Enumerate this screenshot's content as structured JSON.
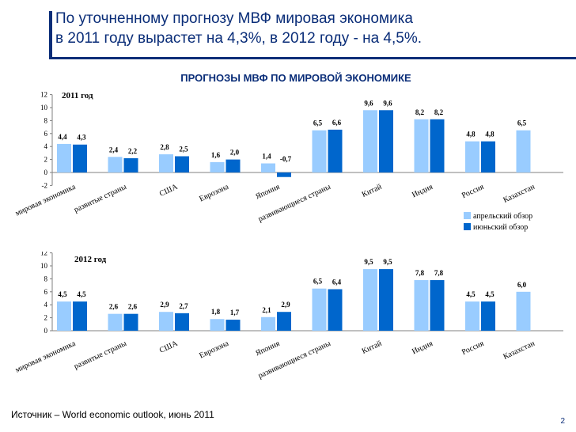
{
  "slide": {
    "title_line1": "По уточненному прогнозу МВФ мировая экономика",
    "title_line2": "в 2011 году вырастет на 4,3%, в 2012 году - на 4,5%.",
    "chart_heading": "ПРОГНОЗЫ МВФ ПО МИРОВОЙ ЭКОНОМИКЕ",
    "source": "Источник – World economic outlook, июнь 2011",
    "page_number": "2"
  },
  "colors": {
    "april": "#99ccff",
    "june": "#0066cc",
    "title": "#0a2d78"
  },
  "chart_data": [
    {
      "type": "bar",
      "title": "2011 год",
      "categories": [
        "мировая экономика",
        "развитые страны",
        "США",
        "Еврозона",
        "Япония",
        "развивающиеся страны",
        "Китай",
        "Индия",
        "Россия",
        "Казахстан"
      ],
      "series": [
        {
          "name": "апрельский обзор",
          "values": [
            4.4,
            2.4,
            2.8,
            1.6,
            1.4,
            6.5,
            9.6,
            8.2,
            4.8,
            6.5
          ]
        },
        {
          "name": "июньский обзор",
          "values": [
            4.3,
            2.2,
            2.5,
            2.0,
            -0.7,
            6.6,
            9.6,
            8.2,
            4.8,
            null
          ]
        }
      ],
      "labels": [
        [
          "4,4",
          "2,4",
          "2,8",
          "1,6",
          "1,4",
          "6,5",
          "9,6",
          "8,2",
          "4,8",
          "6,5"
        ],
        [
          "4,3",
          "2,2",
          "2,5",
          "2,0",
          "-0,7",
          "6,6",
          "9,6",
          "8,2",
          "4,8",
          ""
        ]
      ],
      "ylim": [
        -2,
        12
      ],
      "yticks": [
        "-2",
        "0",
        "2",
        "4",
        "6",
        "8",
        "10",
        "12"
      ],
      "legend": [
        "апрельский обзор",
        "июньский обзор"
      ],
      "legend_position": "bottom-right"
    },
    {
      "type": "bar",
      "title": "2012 год",
      "categories": [
        "мировая экономика",
        "развитые страны",
        "США",
        "Еврозона",
        "Япония",
        "развивающиеся страны",
        "Китай",
        "Индия",
        "Россия",
        "Казахстан"
      ],
      "series": [
        {
          "name": "апрельский обзор",
          "values": [
            4.5,
            2.6,
            2.9,
            1.8,
            2.1,
            6.5,
            9.5,
            7.8,
            4.5,
            6.0
          ]
        },
        {
          "name": "июньский обзор",
          "values": [
            4.5,
            2.6,
            2.7,
            1.7,
            2.9,
            6.4,
            9.5,
            7.8,
            4.5,
            null
          ]
        }
      ],
      "labels": [
        [
          "4,5",
          "2,6",
          "2,9",
          "1,8",
          "2,1",
          "6,5",
          "9,5",
          "7,8",
          "4,5",
          "6,0"
        ],
        [
          "4,5",
          "2,6",
          "2,7",
          "1,7",
          "2,9",
          "6,4",
          "9,5",
          "7,8",
          "4,5",
          ""
        ]
      ],
      "ylim": [
        0,
        12
      ],
      "yticks": [
        "0",
        "2",
        "4",
        "6",
        "8",
        "10",
        "12"
      ]
    }
  ]
}
